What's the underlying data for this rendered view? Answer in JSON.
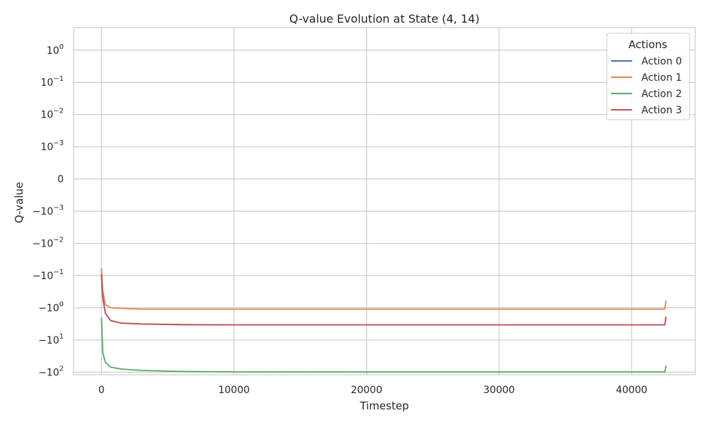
{
  "chart_data": {
    "type": "line",
    "title": "Q-value Evolution at State (4, 14)",
    "xlabel": "Timestep",
    "ylabel": "Q-value",
    "xlim": [
      -2100,
      44800
    ],
    "ylim": [
      -120,
      5
    ],
    "yscale": "symlog",
    "x_ticks": [
      0,
      10000,
      20000,
      30000,
      40000
    ],
    "y_ticks": [
      {
        "value": 1,
        "label": "10^0"
      },
      {
        "value": 0.1,
        "label": "10^−1"
      },
      {
        "value": 0.01,
        "label": "10^−2"
      },
      {
        "value": 0.001,
        "label": "10^−3"
      },
      {
        "value": 0,
        "label": "0"
      },
      {
        "value": -0.001,
        "label": "−10^−3"
      },
      {
        "value": -0.01,
        "label": "−10^−2"
      },
      {
        "value": -0.1,
        "label": "−10^−1"
      },
      {
        "value": -1,
        "label": "−10^0"
      },
      {
        "value": -10,
        "label": "−10^1"
      },
      {
        "value": -100,
        "label": "−10^2"
      }
    ],
    "grid": true,
    "legend": {
      "title": "Actions",
      "position": "top-right"
    },
    "series": [
      {
        "name": "Action 0",
        "color": "#4c72b0",
        "x": [
          0,
          100,
          300,
          700,
          1500,
          3000,
          6000,
          10000,
          20000,
          30000,
          40000,
          42500,
          42600
        ],
        "y": [
          -0.09,
          -0.5,
          -1.5,
          -2.5,
          -3.0,
          -3.2,
          -3.35,
          -3.4,
          -3.4,
          -3.4,
          -3.4,
          -3.4,
          -1.9
        ]
      },
      {
        "name": "Action 1",
        "color": "#dd8452",
        "x": [
          0,
          100,
          300,
          700,
          1500,
          3000,
          6000,
          10000,
          20000,
          30000,
          40000,
          42500,
          42600
        ],
        "y": [
          -0.06,
          -0.3,
          -0.8,
          -1.0,
          -1.05,
          -1.1,
          -1.1,
          -1.1,
          -1.1,
          -1.1,
          -1.1,
          -1.1,
          -0.6
        ]
      },
      {
        "name": "Action 2",
        "color": "#55a868",
        "x": [
          0,
          100,
          300,
          700,
          1500,
          3000,
          6000,
          10000,
          20000,
          30000,
          40000,
          42500,
          42600
        ],
        "y": [
          -2.0,
          -25,
          -50,
          -70,
          -80,
          -88,
          -95,
          -98,
          -99,
          -99,
          -99,
          -99,
          -62
        ]
      },
      {
        "name": "Action 3",
        "color": "#c44e52",
        "x": [
          0,
          100,
          300,
          700,
          1500,
          3000,
          6000,
          10000,
          20000,
          30000,
          40000,
          42500,
          42600
        ],
        "y": [
          -0.09,
          -0.5,
          -1.5,
          -2.5,
          -3.0,
          -3.2,
          -3.35,
          -3.4,
          -3.4,
          -3.4,
          -3.4,
          -3.4,
          -1.9
        ]
      }
    ]
  }
}
